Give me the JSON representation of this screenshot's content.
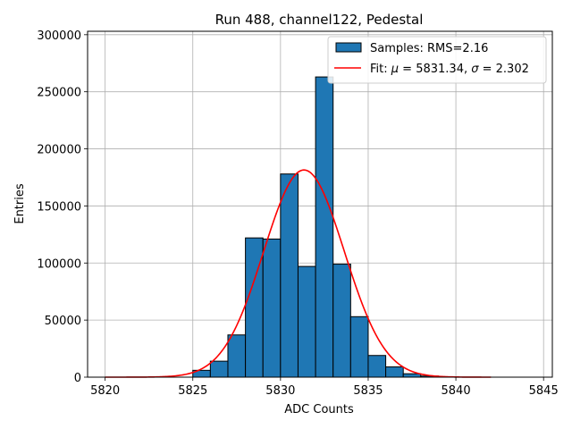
{
  "chart_data": {
    "type": "bar",
    "title": "Run 488, channel122, Pedestal",
    "xlabel": "ADC Counts",
    "ylabel": "Entries",
    "xlim": [
      5819,
      5845.5
    ],
    "ylim": [
      0,
      303000
    ],
    "x_ticks": [
      5820,
      5825,
      5830,
      5835,
      5840,
      5845
    ],
    "x_tick_labels": [
      "5820",
      "5825",
      "5830",
      "5835",
      "5840",
      "5845"
    ],
    "y_ticks": [
      0,
      50000,
      100000,
      150000,
      200000,
      250000,
      300000
    ],
    "y_tick_labels": [
      "0",
      "50000",
      "100000",
      "150000",
      "200000",
      "250000",
      "300000"
    ],
    "grid": true,
    "legend_position": "top-right",
    "histogram": {
      "name": "Samples: RMS=2.16",
      "color": "#1f77b4",
      "edge_color": "#000000",
      "bin_width": 1,
      "bins": [
        {
          "x0": 5825,
          "count": 6000
        },
        {
          "x0": 5826,
          "count": 14000
        },
        {
          "x0": 5827,
          "count": 37000
        },
        {
          "x0": 5828,
          "count": 122000
        },
        {
          "x0": 5829,
          "count": 121000
        },
        {
          "x0": 5830,
          "count": 178000
        },
        {
          "x0": 5831,
          "count": 97000
        },
        {
          "x0": 5832,
          "count": 263000
        },
        {
          "x0": 5833,
          "count": 99000
        },
        {
          "x0": 5834,
          "count": 53000
        },
        {
          "x0": 5835,
          "count": 19000
        },
        {
          "x0": 5836,
          "count": 9000
        },
        {
          "x0": 5837,
          "count": 3000
        },
        {
          "x0": 5838,
          "count": 1000
        }
      ]
    },
    "fit": {
      "name": "Fit: μ = 5831.34, σ = 2.302",
      "legend_prefix": "Fit: ",
      "legend_mu_symbol": "μ",
      "legend_mu_value": " = 5831.34, ",
      "legend_sigma_symbol": "σ",
      "legend_sigma_value": " = 2.302",
      "color": "#ff0000",
      "mu": 5831.34,
      "sigma": 2.302,
      "amplitude": 181500,
      "x_range": [
        5820,
        5842
      ]
    }
  }
}
